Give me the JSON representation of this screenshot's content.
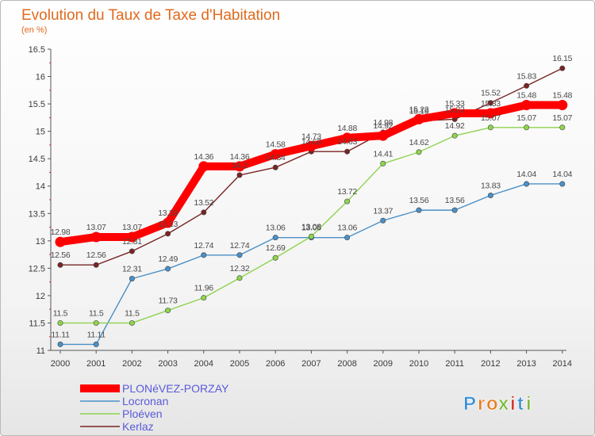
{
  "chart_data": {
    "type": "line",
    "title": "Evolution du Taux de Taxe d'Habitation",
    "subtitle": "(en %)",
    "x": [
      "2000",
      "2001",
      "2002",
      "2003",
      "2004",
      "2005",
      "2006",
      "2007",
      "2008",
      "2009",
      "2010",
      "2011",
      "2012",
      "2013",
      "2014"
    ],
    "ylim": [
      11,
      16.5
    ],
    "yticks": [
      "11",
      "11.5",
      "12",
      "12.5",
      "13",
      "13.5",
      "14",
      "14.5",
      "15",
      "15.5",
      "16",
      "16.5"
    ],
    "grid": false,
    "legend_position": "bottom-left",
    "series": [
      {
        "name": "PLONéVEZ-PORZAY",
        "color": "#ff0000",
        "values": [
          12.98,
          13.07,
          13.07,
          13.33,
          14.36,
          14.36,
          14.58,
          14.73,
          14.88,
          14.92,
          15.22,
          15.33,
          15.33,
          15.48,
          15.48
        ],
        "labels": [
          "12.98",
          "13.07",
          "13.07",
          "13.33",
          "14.36",
          "14.36",
          "14.58",
          "14.73",
          "14.88",
          "14.92",
          "15.22",
          "15.33",
          "15.33",
          "15.48",
          "15.48"
        ]
      },
      {
        "name": "Locronan",
        "color": "#4a90c8",
        "values": [
          11.11,
          11.11,
          12.31,
          12.49,
          12.74,
          12.74,
          13.06,
          13.06,
          13.06,
          13.37,
          13.56,
          13.56,
          13.83,
          14.04,
          14.04
        ],
        "labels": [
          "11.11",
          "11.11",
          "12.31",
          "12.49",
          "12.74",
          "12.74",
          "13.06",
          "13.06",
          "13.06",
          "13.37",
          "13.56",
          "13.56",
          "13.83",
          "14.04",
          "14.04"
        ]
      },
      {
        "name": "Ploéven",
        "color": "#8ed44e",
        "values": [
          11.5,
          11.5,
          11.5,
          11.73,
          11.96,
          12.32,
          12.69,
          13.08,
          13.72,
          14.41,
          14.62,
          14.92,
          15.07,
          15.07,
          15.07
        ],
        "labels": [
          "11.5",
          "11.5",
          "11.5",
          "11.73",
          "11.96",
          "12.32",
          "12.69",
          "13.08",
          "13.72",
          "14.41",
          "14.62",
          "14.92",
          "15.07",
          "15.07",
          "15.07"
        ]
      },
      {
        "name": "Kerlaz",
        "color": "#7a2424",
        "values": [
          12.56,
          12.56,
          12.81,
          13.13,
          13.52,
          14.2,
          14.34,
          14.63,
          14.63,
          14.98,
          15.19,
          15.22,
          15.52,
          15.83,
          16.15
        ],
        "labels": [
          "12.56",
          "12.56",
          "12.81",
          "13.13",
          "13.52",
          "14.2",
          "14.34",
          "14.63",
          "14.63",
          "14.98",
          "15.19",
          "15.22",
          "15.52",
          "15.83",
          "16.15"
        ]
      }
    ]
  },
  "logo": {
    "letters": [
      "P",
      "r",
      "o",
      "x",
      "i",
      "t",
      "i"
    ],
    "colors": [
      "#3b8fd6",
      "#e57d1f",
      "#e57d1f",
      "#7ab83c",
      "#d93030",
      "#3b8fd6",
      "#7ab83c"
    ]
  }
}
